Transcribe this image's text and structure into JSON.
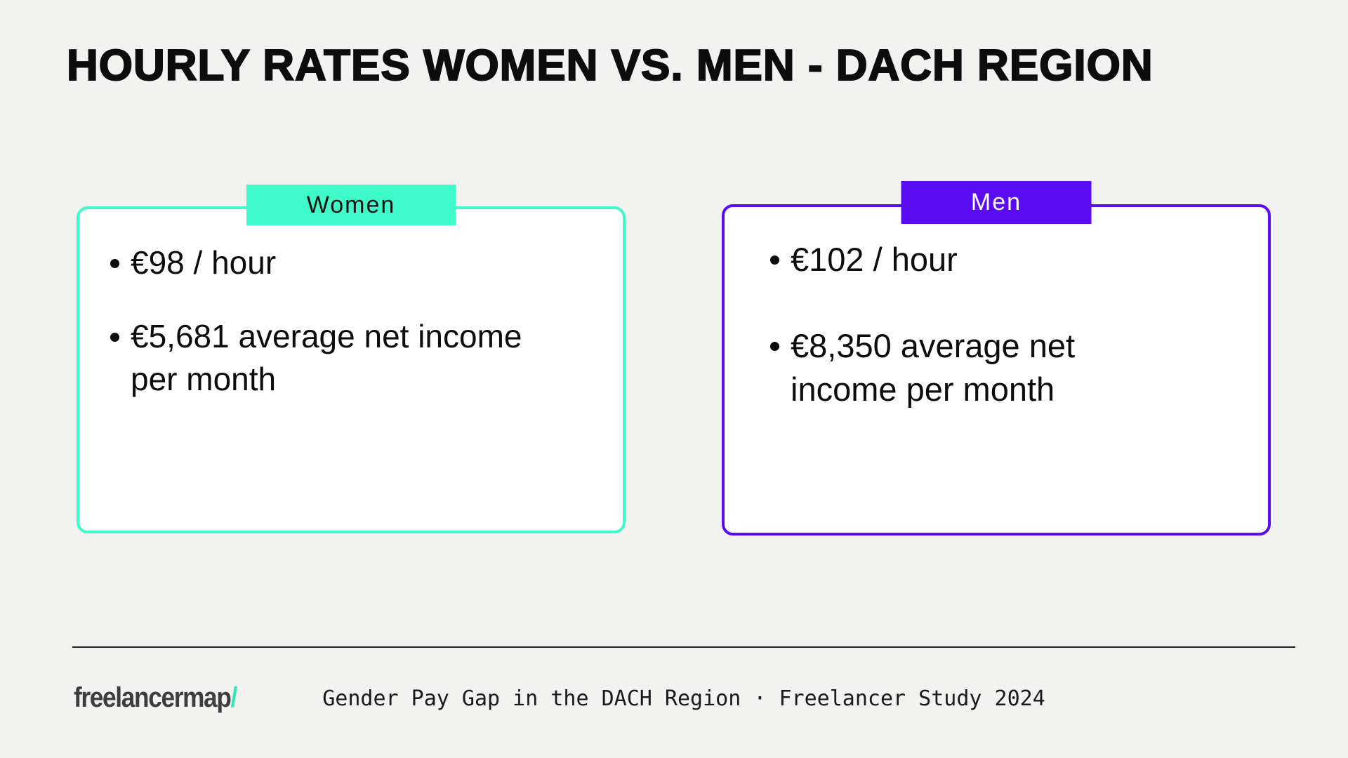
{
  "page": {
    "title": "HOURLY RATES WOMEN VS. MEN - DACH REGION"
  },
  "theme": {
    "background": "#f2f2f1",
    "card_background": "#ffffff",
    "text": "#0d0d0d",
    "women_accent": "#3ffac9",
    "men_accent": "#5a0df2",
    "women_label_text": "#101010",
    "men_label_text": "#ffffff",
    "logo_gray": "#3d3d3d",
    "logo_slash_teal": "#2ee6b8",
    "divider": "#1f1f1f"
  },
  "cards": [
    {
      "label": "Women",
      "bullets": [
        "€98 / hour",
        "€5,681 average net income per month"
      ]
    },
    {
      "label": "Men",
      "bullets": [
        "€102 / hour",
        "€8,350 average net income per month"
      ]
    }
  ],
  "footer": {
    "logo_text": "freelancermap",
    "logo_slash": "/",
    "caption": "Gender Pay Gap in the DACH Region · Freelancer Study 2024"
  }
}
